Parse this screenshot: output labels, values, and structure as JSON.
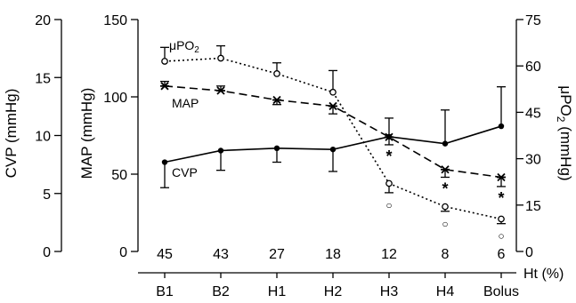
{
  "chart_data": {
    "type": "line",
    "categories": [
      "B1",
      "B2",
      "H1",
      "H2",
      "H3",
      "H4",
      "Bolus"
    ],
    "ht_values": [
      "45",
      "43",
      "27",
      "18",
      "12",
      "8",
      "6"
    ],
    "ht_label": "Ht (%)",
    "axes": {
      "cvp": {
        "label": "CVP (mmHg)",
        "ylim": [
          0,
          20
        ],
        "ticks": [
          "0",
          "5",
          "10",
          "15",
          "20"
        ]
      },
      "map": {
        "label": "MAP (mmHg)",
        "ylim": [
          0,
          150
        ],
        "ticks": [
          "0",
          "50",
          "100",
          "150"
        ]
      },
      "po2": {
        "label": "μPO2 (mmHg)",
        "ylim": [
          0,
          75
        ],
        "ticks": [
          "0",
          "15",
          "30",
          "45",
          "60",
          "75"
        ]
      }
    },
    "series": [
      {
        "name": "CVP",
        "axis": "cvp",
        "style": "solid",
        "marker": "filled-circle",
        "values": [
          7.7,
          8.7,
          8.9,
          8.8,
          9.9,
          9.3,
          10.8
        ],
        "errors": [
          2.2,
          1.7,
          1.2,
          1.9,
          1.6,
          2.9,
          3.4
        ],
        "error_dir": [
          -1,
          -1,
          -1,
          -1,
          1,
          1,
          1
        ]
      },
      {
        "name": "MAP",
        "axis": "map",
        "style": "dashed",
        "marker": "asterisk",
        "values": [
          107,
          104,
          98,
          94,
          74,
          53,
          48
        ],
        "errors": [
          3,
          3,
          3,
          5,
          5,
          5,
          6
        ],
        "error_dir": [
          1,
          1,
          -1,
          -1,
          -1,
          -1,
          -1
        ]
      },
      {
        "name": "μPO2",
        "axis": "po2",
        "style": "dotted",
        "marker": "open-circle",
        "values": [
          61.5,
          62.5,
          57.5,
          51.5,
          22.0,
          14.5,
          10.5
        ],
        "errors": [
          4.5,
          4.0,
          3.5,
          7.0,
          3.0,
          1.5,
          1.5
        ],
        "error_dir": [
          1,
          1,
          1,
          1,
          -1,
          -1,
          -1
        ]
      }
    ],
    "significance": {
      "star": [
        4,
        5,
        6
      ],
      "circle": [
        4,
        5,
        6
      ],
      "star_text": "*",
      "circle_text": "○"
    },
    "labels": {
      "po2": {
        "prefix": "μPO",
        "sub": "2"
      },
      "map": "MAP",
      "cvp": "CVP"
    },
    "colors": {
      "ink": "#000000",
      "background": "#ffffff"
    }
  }
}
